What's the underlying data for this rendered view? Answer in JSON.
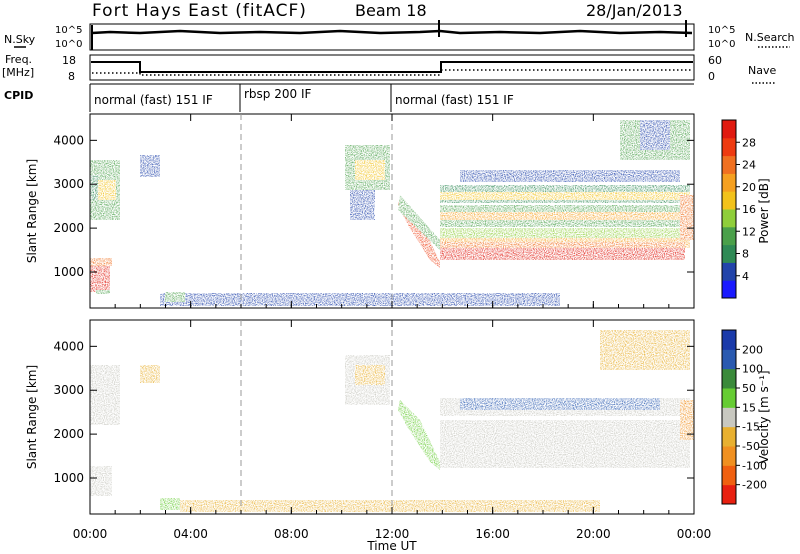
{
  "header": {
    "station": "Fort Hays East (fitACF)",
    "beam": "Beam 18",
    "date": "28/Jan/2013"
  },
  "panels": {
    "nsky": {
      "left_label": "N.Sky",
      "right_label": "N.Search",
      "tick_hi": "10^5",
      "tick_lo": "10^0"
    },
    "freq": {
      "left_label_1": "Freq.",
      "left_label_2": "[MHz]",
      "right_label": "Nave",
      "left_ticks": [
        "18",
        "8"
      ],
      "right_ticks": [
        "60",
        "0"
      ]
    },
    "cpid": {
      "label": "CPID",
      "segments": [
        "normal (fast) 151 IF",
        "rbsp 200 IF",
        "normal (fast) 151 IF"
      ]
    }
  },
  "colors": {
    "power": [
      "#1a1aff",
      "#2244aa",
      "#2f8a55",
      "#4aa04a",
      "#8fce3a",
      "#f2c21b",
      "#f5a020",
      "#f07020",
      "#ee3a10",
      "#e01a10"
    ],
    "velocity": [
      "#1a3aaa",
      "#2a5ab0",
      "#3a8a3a",
      "#66cc33",
      "#c8c8c0",
      "#e8b030",
      "#f09020",
      "#f06010",
      "#e82010"
    ],
    "ground_scatter": "#c8c8c0"
  },
  "chart_data": [
    {
      "type": "heatmap",
      "name": "power",
      "ylabel": "Slant Range [km]",
      "ylim": [
        180,
        4600
      ],
      "yticks": [
        "1000",
        "2000",
        "3000",
        "4000"
      ],
      "xlim_hours": [
        0,
        24
      ],
      "colorbar": {
        "label": "Power [dB]",
        "ticks": [
          "4",
          "8",
          "12",
          "16",
          "20",
          "24",
          "28"
        ]
      },
      "features": [
        {
          "name": "early near-range echo",
          "t": [
            0.0,
            0.7
          ],
          "range_km": [
            700,
            1250
          ],
          "level": "high"
        },
        {
          "name": "early far-range echo",
          "t": [
            0.0,
            1.3
          ],
          "range_km": [
            2300,
            3500
          ],
          "level": "mid"
        },
        {
          "name": "midday patch",
          "t": [
            10.1,
            11.5
          ],
          "range_km": [
            2700,
            3800
          ],
          "level": "mid"
        },
        {
          "name": "evening strong band",
          "t": [
            14.0,
            23.8
          ],
          "range_km": [
            1200,
            1800
          ],
          "level": "high"
        },
        {
          "name": "evening upper bands",
          "t": [
            14.0,
            23.8
          ],
          "range_km": [
            1900,
            2900
          ],
          "level": "low-mid"
        }
      ]
    },
    {
      "type": "heatmap",
      "name": "velocity",
      "ylabel": "Slant Range [km]",
      "ylim": [
        180,
        4600
      ],
      "yticks": [
        "1000",
        "2000",
        "3000",
        "4000"
      ],
      "xlim_hours": [
        0,
        24
      ],
      "colorbar": {
        "label": "Velocity [m s⁻¹]",
        "ticks": [
          "200",
          "100",
          "50",
          "15",
          "-15",
          "-50",
          "-100",
          "-200"
        ]
      },
      "xlabel": "Time UT",
      "xticks": [
        "00:00",
        "04:00",
        "08:00",
        "12:00",
        "16:00",
        "20:00",
        "00:00"
      ]
    }
  ]
}
